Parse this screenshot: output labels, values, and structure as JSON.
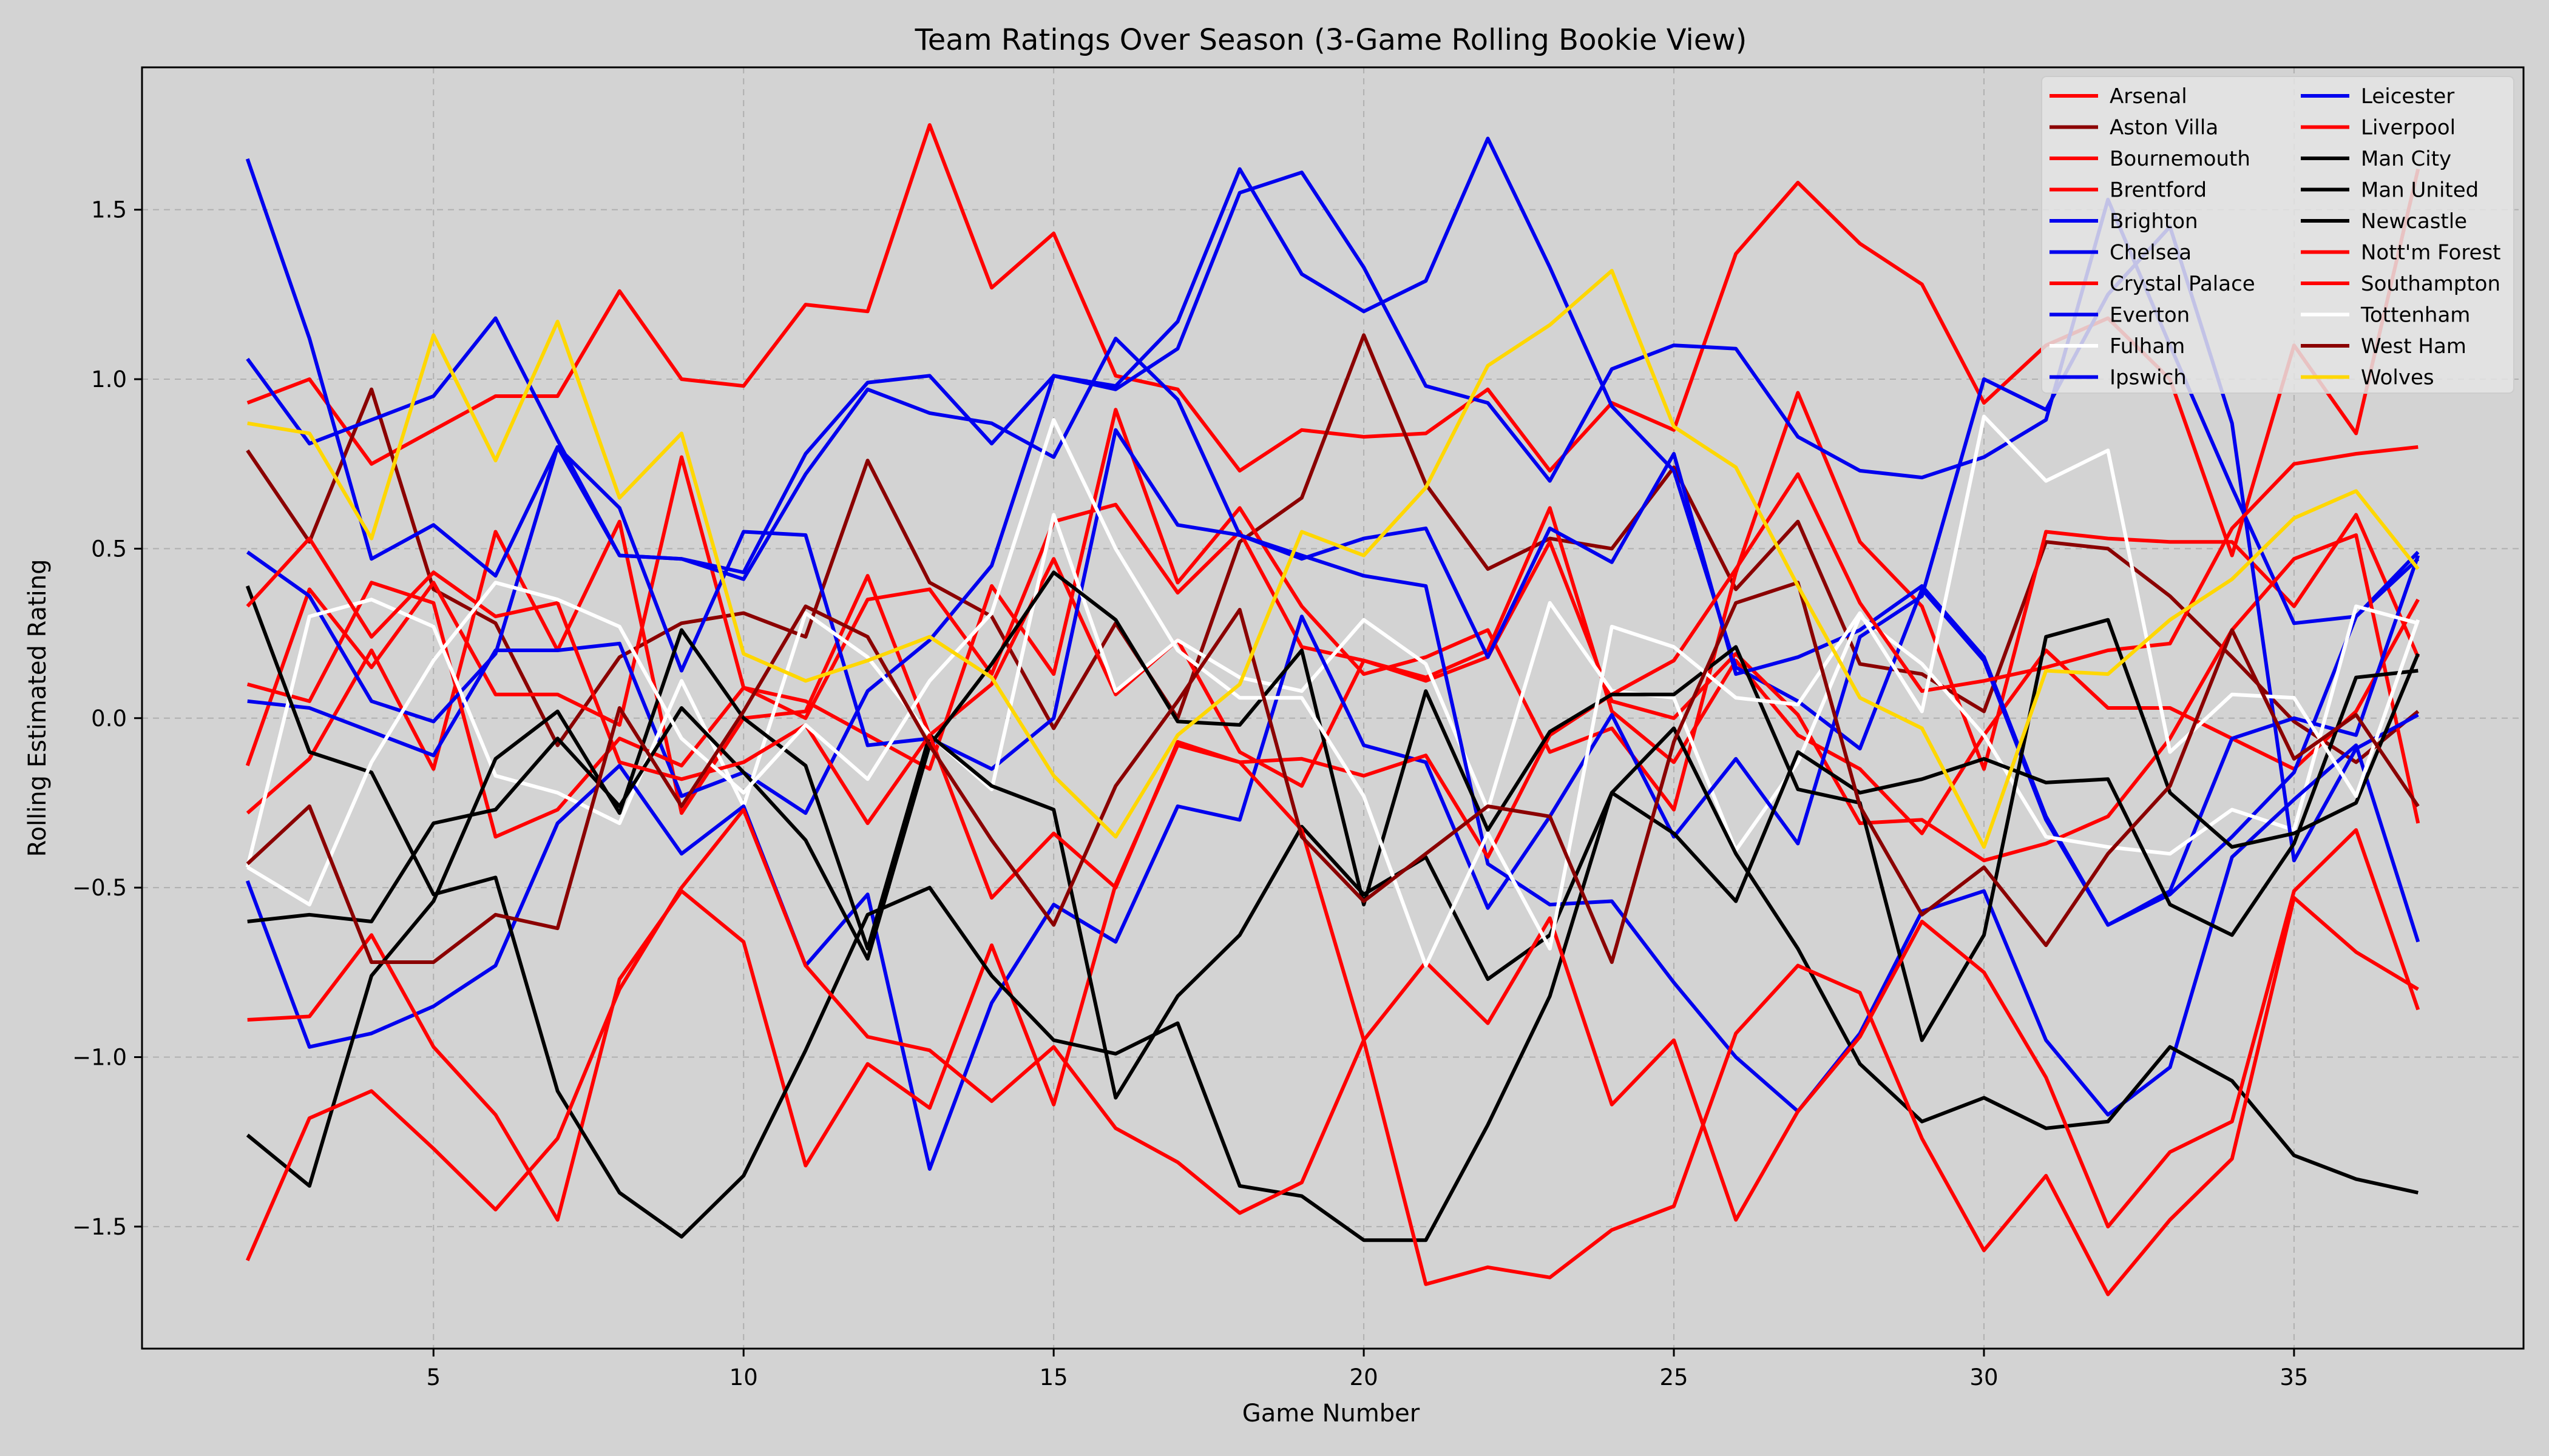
{
  "chart_data": {
    "type": "line",
    "title": "Team Ratings Over Season (3-Game Rolling Bookie View)",
    "xlabel": "Game Number",
    "ylabel": "Rolling Estimated Rating",
    "xlim": [
      0.3,
      38.7
    ],
    "ylim": [
      -1.86,
      1.92
    ],
    "xticks": [
      5,
      10,
      15,
      20,
      25,
      30,
      35
    ],
    "yticks": [
      -1.5,
      -1.0,
      -0.5,
      0.0,
      0.5,
      1.0,
      1.5
    ],
    "xtick_labels": [
      "5",
      "10",
      "15",
      "20",
      "25",
      "30",
      "35"
    ],
    "ytick_labels": [
      "−1.5",
      "−1.0",
      "−0.5",
      "0.0",
      "0.5",
      "1.0",
      "1.5"
    ],
    "grid": true,
    "legend_position": "top-right",
    "legend_columns": 2,
    "background_color": "#d3d3d3",
    "x": [
      2,
      3,
      4,
      5,
      6,
      7,
      8,
      9,
      10,
      11,
      12,
      13,
      14,
      15,
      16,
      17,
      18,
      19,
      20,
      21,
      22,
      23,
      24,
      25,
      26,
      27,
      28,
      29,
      30,
      31,
      32,
      33,
      34,
      35,
      36,
      37
    ],
    "series": [
      {
        "name": "Arsenal",
        "color": "#ff0000",
        "values": [
          0.93,
          1.0,
          0.75,
          0.85,
          0.95,
          0.95,
          1.26,
          1.0,
          0.98,
          1.22,
          1.2,
          1.75,
          1.27,
          1.43,
          1.01,
          0.97,
          0.73,
          0.85,
          0.83,
          0.84,
          0.97,
          0.73,
          0.93,
          0.85,
          1.37,
          1.58,
          1.4,
          1.28,
          0.93,
          1.1,
          1.18,
          1.0,
          0.48,
          1.1,
          0.84,
          1.62
        ]
      },
      {
        "name": "Aston Villa",
        "color": "#8b0000",
        "values": [
          0.79,
          0.52,
          0.97,
          0.38,
          0.28,
          -0.08,
          0.18,
          0.28,
          0.31,
          0.24,
          0.76,
          0.4,
          0.3,
          -0.03,
          0.28,
          0.0,
          0.52,
          0.65,
          1.13,
          0.69,
          0.44,
          0.53,
          0.5,
          0.74,
          0.38,
          0.58,
          0.16,
          0.13,
          0.02,
          0.52,
          0.5,
          0.36,
          0.18,
          -0.01,
          -0.13,
          0.02
        ]
      },
      {
        "name": "Bournemouth",
        "color": "#ff0000",
        "values": [
          -0.14,
          0.38,
          0.15,
          0.4,
          0.07,
          0.07,
          -0.02,
          0.77,
          0.09,
          0.05,
          -0.05,
          -0.15,
          0.39,
          0.13,
          0.91,
          0.4,
          0.62,
          0.33,
          0.13,
          0.18,
          0.26,
          -0.1,
          -0.03,
          -0.27,
          0.43,
          0.96,
          0.52,
          0.33,
          -0.15,
          0.55,
          0.53,
          0.52,
          0.52,
          0.33,
          0.6,
          0.18
        ]
      },
      {
        "name": "Brentford",
        "color": "#ff0000",
        "values": [
          -0.28,
          -0.12,
          0.2,
          -0.15,
          0.55,
          0.2,
          0.58,
          -0.28,
          0.0,
          0.02,
          0.42,
          -0.05,
          0.1,
          0.47,
          0.07,
          0.23,
          -0.1,
          -0.2,
          0.17,
          0.12,
          0.2,
          0.62,
          0.02,
          -0.13,
          0.17,
          -0.05,
          -0.15,
          -0.34,
          -0.05,
          0.2,
          0.03,
          0.03,
          -0.06,
          -0.15,
          0.02,
          0.35
        ]
      },
      {
        "name": "Brighton",
        "color": "#0000ee",
        "values": [
          0.05,
          0.03,
          -0.04,
          -0.11,
          0.2,
          0.2,
          0.22,
          -0.23,
          -0.16,
          -0.28,
          0.08,
          0.23,
          0.45,
          1.01,
          0.98,
          1.17,
          1.62,
          1.31,
          1.2,
          1.29,
          1.71,
          1.33,
          0.92,
          0.73,
          0.15,
          0.05,
          -0.09,
          0.38,
          0.17,
          -0.3,
          -0.61,
          -0.52,
          -0.35,
          -0.16,
          0.3,
          0.47
        ]
      },
      {
        "name": "Chelsea",
        "color": "#0000ee",
        "values": [
          1.65,
          1.12,
          0.47,
          0.57,
          0.42,
          0.8,
          0.48,
          0.47,
          0.43,
          0.78,
          0.99,
          1.01,
          0.81,
          1.01,
          0.97,
          1.09,
          1.55,
          1.61,
          1.33,
          0.98,
          0.93,
          0.7,
          1.03,
          1.1,
          1.09,
          0.83,
          0.73,
          0.71,
          0.77,
          0.88,
          1.53,
          1.1,
          0.68,
          0.28,
          0.3,
          0.49
        ]
      },
      {
        "name": "Crystal Palace",
        "color": "#ff0000",
        "values": [
          0.1,
          0.05,
          0.4,
          0.34,
          -0.35,
          -0.27,
          -0.06,
          -0.14,
          0.09,
          0.0,
          0.35,
          0.38,
          0.13,
          0.58,
          0.63,
          0.37,
          0.55,
          0.21,
          0.17,
          0.11,
          0.18,
          0.52,
          0.05,
          0.0,
          0.19,
          0.01,
          -0.31,
          -0.3,
          -0.42,
          -0.37,
          -0.29,
          -0.06,
          0.26,
          0.47,
          0.54,
          -0.31
        ]
      },
      {
        "name": "Everton",
        "color": "#0000ee",
        "values": [
          0.49,
          0.36,
          0.05,
          -0.01,
          0.19,
          0.8,
          0.62,
          0.14,
          0.55,
          0.54,
          -0.08,
          -0.06,
          -0.15,
          0.0,
          0.85,
          0.57,
          0.54,
          0.47,
          0.53,
          0.56,
          0.18,
          0.56,
          0.46,
          0.78,
          0.13,
          0.18,
          0.26,
          0.39,
          0.18,
          -0.29,
          -0.61,
          -0.51,
          -0.06,
          0.0,
          -0.05,
          0.48
        ]
      },
      {
        "name": "Fulham",
        "color": "#ffffff",
        "values": [
          -0.44,
          0.3,
          0.35,
          0.27,
          -0.17,
          -0.22,
          -0.31,
          0.11,
          -0.26,
          0.31,
          0.18,
          -0.05,
          -0.21,
          0.6,
          0.08,
          0.23,
          0.12,
          0.08,
          0.29,
          0.16,
          -0.27,
          0.34,
          0.08,
          0.06,
          -0.39,
          -0.13,
          0.3,
          0.16,
          -0.05,
          -0.35,
          -0.38,
          -0.4,
          -0.27,
          -0.33,
          0.33,
          0.28
        ]
      },
      {
        "name": "Ipswich",
        "color": "#0000ee",
        "values": [
          -0.48,
          -0.97,
          -0.93,
          -0.85,
          -0.73,
          -0.31,
          -0.14,
          -0.4,
          -0.26,
          -0.73,
          -0.52,
          -1.33,
          -0.84,
          -0.55,
          -0.66,
          -0.26,
          -0.3,
          0.3,
          -0.08,
          -0.13,
          -0.56,
          -0.29,
          0.01,
          -0.35,
          -0.12,
          -0.37,
          0.24,
          0.36,
          1.0,
          0.91,
          1.25,
          1.45,
          0.87,
          -0.42,
          -0.09,
          0.01
        ]
      },
      {
        "name": "Leicester",
        "color": "#0000ee",
        "values": [
          1.06,
          0.81,
          0.88,
          0.95,
          1.18,
          0.82,
          0.48,
          0.47,
          0.41,
          0.72,
          0.97,
          0.9,
          0.87,
          0.77,
          1.12,
          0.94,
          0.54,
          0.48,
          0.42,
          0.39,
          -0.43,
          -0.55,
          -0.54,
          -0.78,
          -1.0,
          -1.16,
          -0.93,
          -0.57,
          -0.51,
          -0.95,
          -1.17,
          -1.03,
          -0.41,
          -0.24,
          -0.08,
          -0.66
        ]
      },
      {
        "name": "Liverpool",
        "color": "#ff0000",
        "values": [
          -0.89,
          -0.88,
          -0.64,
          -0.97,
          -1.17,
          -1.48,
          -0.77,
          -0.51,
          -0.66,
          -1.32,
          -1.02,
          -1.15,
          -0.67,
          -1.14,
          -0.49,
          -0.08,
          -0.13,
          -0.12,
          -0.17,
          -0.11,
          -0.41,
          -0.05,
          0.07,
          0.17,
          0.44,
          0.72,
          0.34,
          0.08,
          0.11,
          0.15,
          0.2,
          0.22,
          0.56,
          0.75,
          0.78,
          0.8
        ]
      },
      {
        "name": "Man City",
        "color": "#000000",
        "values": [
          -1.23,
          -1.38,
          -0.76,
          -0.54,
          -0.12,
          0.02,
          -0.28,
          0.26,
          0.0,
          -0.14,
          -0.68,
          -0.05,
          -0.2,
          -0.27,
          -1.12,
          -0.82,
          -0.64,
          -0.32,
          -0.52,
          -0.41,
          -0.77,
          -0.64,
          -0.22,
          -0.34,
          -0.54,
          -0.1,
          -0.22,
          -0.18,
          -0.12,
          -0.19,
          -0.18,
          -0.55,
          -0.64,
          -0.37,
          0.12,
          0.14
        ]
      },
      {
        "name": "Man United",
        "color": "#000000",
        "values": [
          0.39,
          -0.1,
          -0.16,
          -0.52,
          -0.47,
          -1.1,
          -1.4,
          -1.53,
          -1.35,
          -0.98,
          -0.58,
          -0.5,
          -0.76,
          -0.95,
          -0.99,
          -0.9,
          -1.38,
          -1.41,
          -1.54,
          -1.54,
          -1.2,
          -0.82,
          -0.22,
          -0.03,
          -0.4,
          -0.68,
          -1.02,
          -1.19,
          -1.12,
          -1.21,
          -1.19,
          -0.97,
          -1.07,
          -1.29,
          -1.36,
          -1.4
        ]
      },
      {
        "name": "Newcastle",
        "color": "#000000",
        "values": [
          -0.6,
          -0.58,
          -0.6,
          -0.31,
          -0.27,
          -0.06,
          -0.26,
          0.03,
          -0.16,
          -0.36,
          -0.71,
          -0.08,
          0.16,
          0.43,
          0.29,
          -0.01,
          -0.02,
          0.2,
          -0.55,
          0.08,
          -0.33,
          -0.04,
          0.07,
          0.07,
          0.21,
          -0.21,
          -0.25,
          -0.95,
          -0.64,
          0.24,
          0.29,
          -0.22,
          -0.38,
          -0.34,
          -0.25,
          0.19
        ]
      },
      {
        "name": "Nott'm Forest",
        "color": "#ff0000",
        "values": [
          -1.6,
          -1.18,
          -1.1,
          -1.27,
          -1.45,
          -1.24,
          -0.8,
          -0.5,
          -0.27,
          -0.73,
          -0.94,
          -0.98,
          -1.13,
          -0.97,
          -1.21,
          -1.31,
          -1.46,
          -1.37,
          -0.95,
          -0.72,
          -0.9,
          -0.59,
          -1.14,
          -0.95,
          -1.48,
          -1.16,
          -0.94,
          -0.6,
          -0.75,
          -1.06,
          -1.5,
          -1.28,
          -1.19,
          -0.51,
          -0.33,
          -0.86
        ]
      },
      {
        "name": "Southampton",
        "color": "#ff0000",
        "values": [
          0.33,
          0.53,
          0.24,
          0.43,
          0.3,
          0.34,
          -0.13,
          -0.18,
          -0.13,
          -0.02,
          -0.31,
          -0.05,
          -0.53,
          -0.34,
          -0.5,
          -0.07,
          -0.13,
          -0.33,
          -0.95,
          -1.67,
          -1.62,
          -1.65,
          -1.51,
          -1.44,
          -0.93,
          -0.73,
          -0.81,
          -1.24,
          -1.57,
          -1.35,
          -1.7,
          -1.48,
          -1.3,
          -0.53,
          -0.69,
          -0.8
        ]
      },
      {
        "name": "Tottenham",
        "color": "#ffffff",
        "values": [
          -0.44,
          -0.55,
          -0.13,
          0.17,
          0.4,
          0.35,
          0.27,
          -0.06,
          -0.22,
          -0.02,
          -0.18,
          0.11,
          0.31,
          0.88,
          0.5,
          0.2,
          0.06,
          0.06,
          -0.23,
          -0.73,
          -0.34,
          -0.68,
          0.27,
          0.21,
          0.06,
          0.04,
          0.31,
          0.02,
          0.89,
          0.7,
          0.79,
          -0.1,
          0.07,
          0.06,
          -0.23,
          0.29
        ]
      },
      {
        "name": "West Ham",
        "color": "#8b0000",
        "values": [
          -0.43,
          -0.26,
          -0.72,
          -0.72,
          -0.58,
          -0.62,
          0.03,
          -0.26,
          0.02,
          0.33,
          0.24,
          -0.08,
          -0.36,
          -0.61,
          -0.2,
          0.05,
          0.32,
          -0.35,
          -0.54,
          -0.4,
          -0.26,
          -0.29,
          -0.72,
          -0.07,
          0.34,
          0.4,
          -0.26,
          -0.58,
          -0.44,
          -0.67,
          -0.4,
          -0.2,
          0.26,
          -0.12,
          0.01,
          -0.26
        ]
      },
      {
        "name": "Wolves",
        "color": "#ffd700",
        "values": [
          0.87,
          0.84,
          0.53,
          1.13,
          0.76,
          1.17,
          0.65,
          0.84,
          0.19,
          0.11,
          0.17,
          0.24,
          0.12,
          -0.17,
          -0.35,
          -0.05,
          0.1,
          0.55,
          0.48,
          0.68,
          1.04,
          1.16,
          1.32,
          0.86,
          0.74,
          0.39,
          0.06,
          -0.03,
          -0.38,
          0.14,
          0.13,
          0.29,
          0.41,
          0.59,
          0.67,
          0.44
        ]
      }
    ]
  }
}
